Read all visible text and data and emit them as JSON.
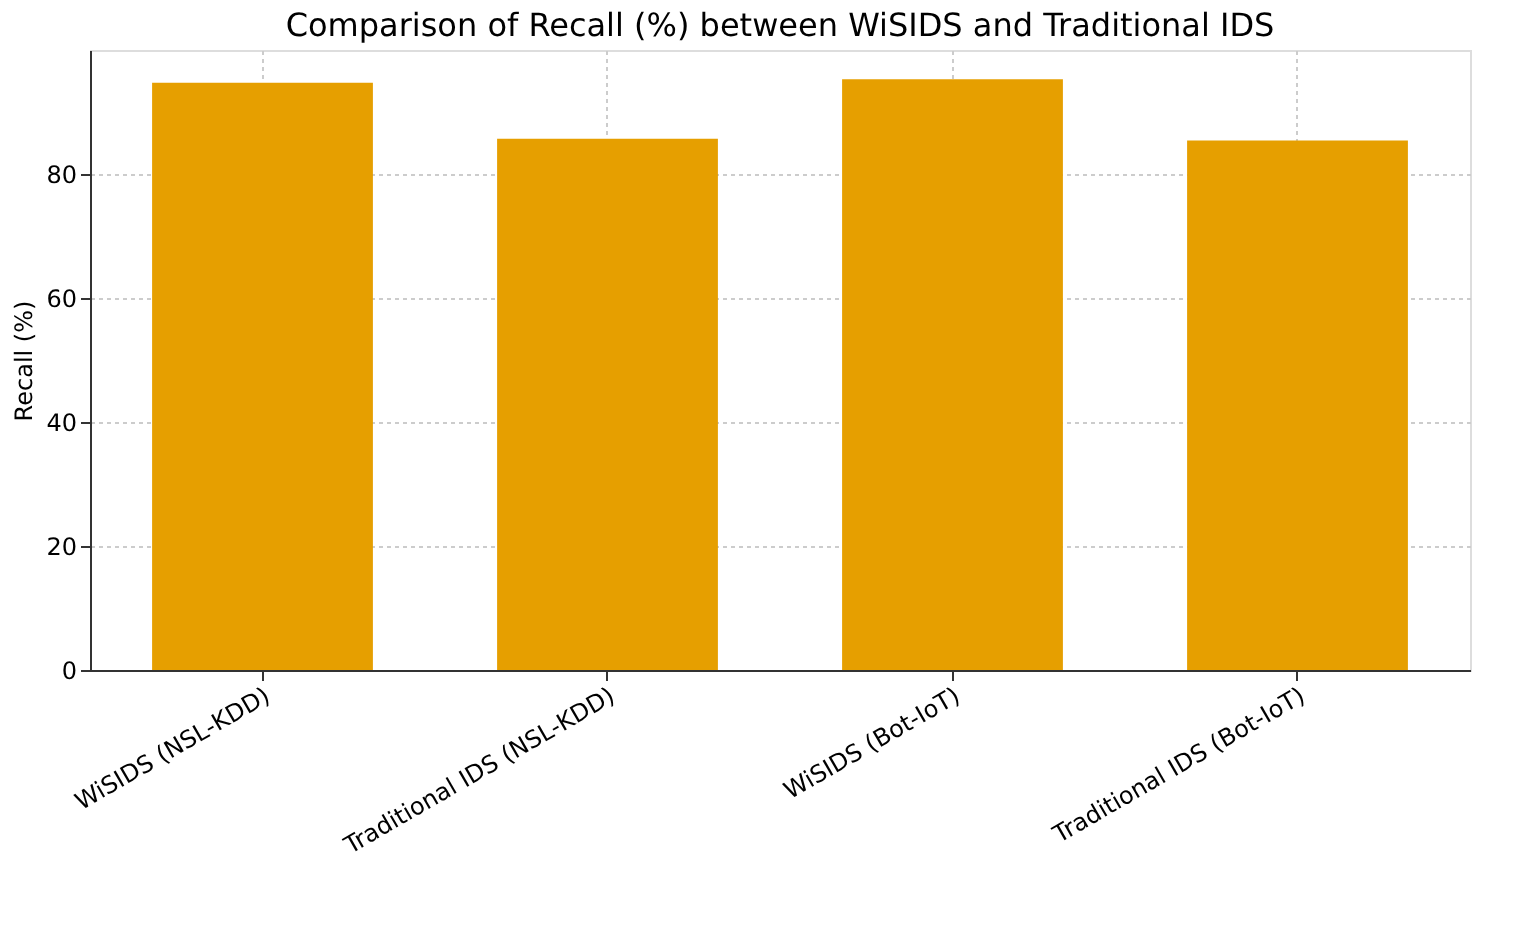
{
  "chart_data": {
    "type": "bar",
    "title": "Comparison of Recall (%) between WiSIDS and Traditional IDS",
    "ylabel": "Recall (%)",
    "categories": [
      "WiSIDS (NSL-KDD)",
      "Traditional IDS (NSL-KDD)",
      "WiSIDS (Bot-IoT)",
      "Traditional IDS (Bot-IoT)"
    ],
    "values": [
      94.7,
      85.7,
      95.3,
      85.4
    ],
    "color": "#e69f00",
    "ylim": [
      0,
      100
    ],
    "yticks": [
      0,
      20,
      40,
      60,
      80
    ],
    "grid": true
  }
}
